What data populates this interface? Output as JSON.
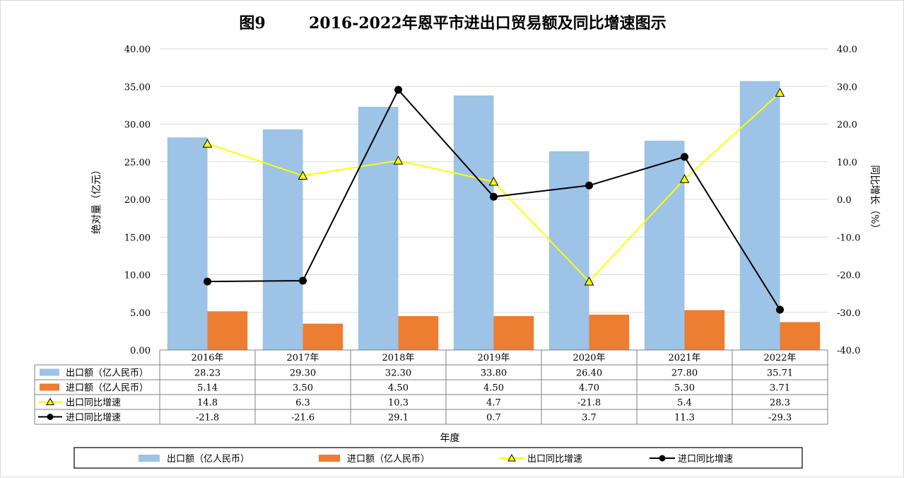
{
  "chart_data": {
    "type": "bar",
    "title": "图9        2016-2022年恩平市进出口贸易额及同比增速图示",
    "categories": [
      "2016年",
      "2017年",
      "2018年",
      "2019年",
      "2020年",
      "2021年",
      "2022年"
    ],
    "xlabel": "年度",
    "ylabel": "绝对量（亿元）",
    "y2label": "同比增长（%）",
    "ylim": [
      0,
      40
    ],
    "y2lim": [
      -40,
      40
    ],
    "y_ticks": [
      "40.00",
      "35.00",
      "30.00",
      "25.00",
      "20.00",
      "15.00",
      "10.00",
      "5.00",
      "0.00"
    ],
    "y2_ticks": [
      "40.0",
      "30.0",
      "20.0",
      "10.0",
      "0.0",
      "-10.0",
      "-20.0",
      "-30.0",
      "-40.0"
    ],
    "grid": true,
    "legend_position": "bottom",
    "data_table": true,
    "series": [
      {
        "name": "出口额（亿人民币）",
        "kind": "bar",
        "axis": "left",
        "color": "#9dc3e6",
        "values": [
          28.23,
          29.3,
          32.3,
          33.8,
          26.4,
          27.8,
          35.71
        ],
        "labels": [
          "28.23",
          "29.30",
          "32.30",
          "33.80",
          "26.40",
          "27.80",
          "35.71"
        ]
      },
      {
        "name": "进口额（亿人民币）",
        "kind": "bar",
        "axis": "left",
        "color": "#ed7d31",
        "values": [
          5.14,
          3.5,
          4.5,
          4.5,
          4.7,
          5.3,
          3.71
        ],
        "labels": [
          "5.14",
          "3.50",
          "4.50",
          "4.50",
          "4.70",
          "5.30",
          "3.71"
        ]
      },
      {
        "name": "出口同比增速",
        "kind": "line",
        "axis": "right",
        "color": "#ffff00",
        "marker": "triangle",
        "values": [
          14.8,
          6.3,
          10.3,
          4.7,
          -21.8,
          5.4,
          28.3
        ],
        "labels": [
          "14.8",
          "6.3",
          "10.3",
          "4.7",
          "-21.8",
          "5.4",
          "28.3"
        ]
      },
      {
        "name": "进口同比增速",
        "kind": "line",
        "axis": "right",
        "color": "#000000",
        "marker": "circle",
        "values": [
          -21.8,
          -21.6,
          29.1,
          0.7,
          3.7,
          11.3,
          -29.3
        ],
        "labels": [
          "-21.8",
          "-21.6",
          "29.1",
          "0.7",
          "3.7",
          "11.3",
          "-29.3"
        ]
      }
    ]
  }
}
